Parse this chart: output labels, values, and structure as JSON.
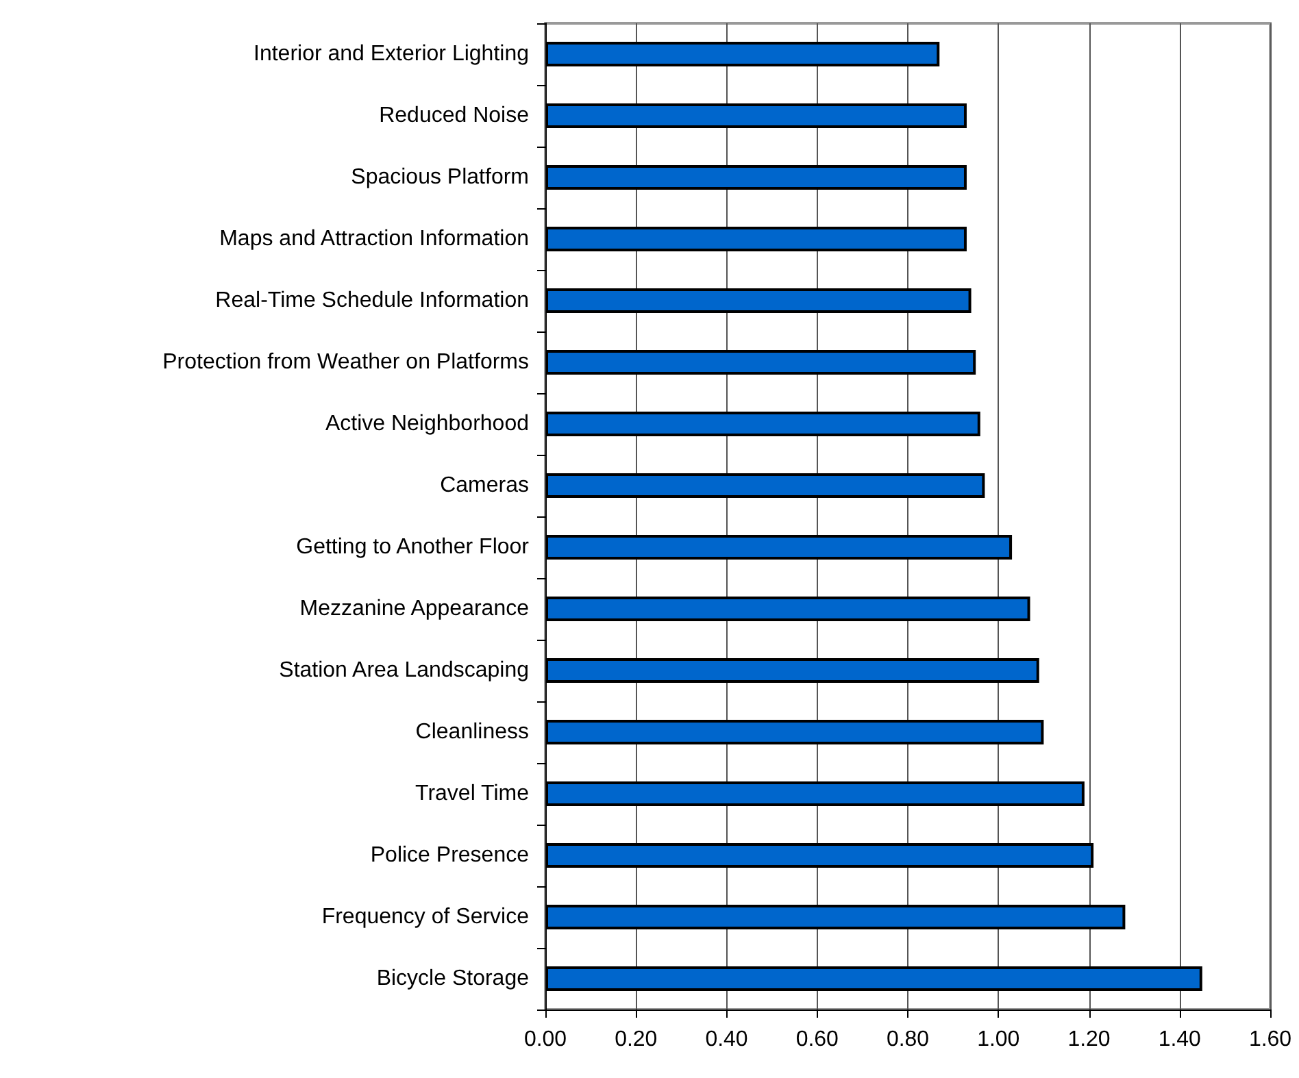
{
  "chart_data": {
    "type": "bar",
    "orientation": "horizontal",
    "categories": [
      "Interior and Exterior Lighting",
      "Reduced Noise",
      "Spacious Platform",
      "Maps and Attraction Information",
      "Real-Time Schedule Information",
      "Protection from Weather on Platforms",
      "Active Neighborhood",
      "Cameras",
      "Getting to Another Floor",
      "Mezzanine Appearance",
      "Station Area Landscaping",
      "Cleanliness",
      "Travel Time",
      "Police Presence",
      "Frequency of Service",
      "Bicycle Storage"
    ],
    "values": [
      0.87,
      0.93,
      0.93,
      0.93,
      0.94,
      0.95,
      0.96,
      0.97,
      1.03,
      1.07,
      1.09,
      1.1,
      1.19,
      1.21,
      1.28,
      1.45
    ],
    "color": "#0066cc",
    "xlim": [
      0,
      1.6
    ],
    "xticks": [
      {
        "value": 0,
        "label": "0.00"
      },
      {
        "value": 0.2,
        "label": "0.20"
      },
      {
        "value": 0.4,
        "label": "0.40"
      },
      {
        "value": 0.6,
        "label": "0.60"
      },
      {
        "value": 0.8,
        "label": "0.80"
      },
      {
        "value": 1,
        "label": "1.00"
      },
      {
        "value": 1.2,
        "label": "1.20"
      },
      {
        "value": 1.4,
        "label": "1.40"
      },
      {
        "value": 1.6,
        "label": "1.60"
      }
    ],
    "grid": "x"
  }
}
